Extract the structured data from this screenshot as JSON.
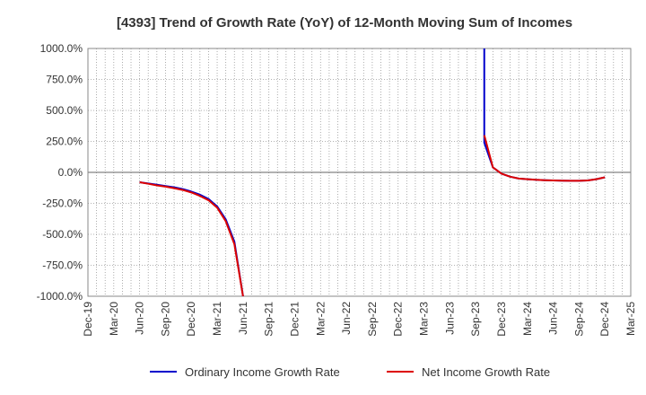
{
  "chart_data": {
    "type": "line",
    "title": "[4393]  Trend of Growth Rate (YoY) of 12-Month Moving Sum of Incomes",
    "xlabel": "",
    "ylabel": "",
    "ylim": [
      -1000,
      1000
    ],
    "yticks": [
      "1000.0%",
      "750.0%",
      "500.0%",
      "250.0%",
      "0.0%",
      "-250.0%",
      "-500.0%",
      "-750.0%",
      "-1000.0%"
    ],
    "ytick_values": [
      1000,
      750,
      500,
      250,
      0,
      -250,
      -500,
      -750,
      -1000
    ],
    "xticks": [
      "Dec-19",
      "Mar-20",
      "Jun-20",
      "Sep-20",
      "Dec-20",
      "Mar-21",
      "Jun-21",
      "Sep-21",
      "Dec-21",
      "Mar-22",
      "Jun-22",
      "Sep-22",
      "Dec-22",
      "Mar-23",
      "Jun-23",
      "Sep-23",
      "Dec-23",
      "Mar-24",
      "Jun-24",
      "Sep-24",
      "Dec-24",
      "Mar-25"
    ],
    "grid": true,
    "legend_position": "bottom",
    "series": [
      {
        "name": "Ordinary Income Growth Rate",
        "color": "#0000cc",
        "points": [
          [
            "Jun-20",
            -80
          ],
          [
            "Jul-20",
            -90
          ],
          [
            "Aug-20",
            -100
          ],
          [
            "Sep-20",
            -110
          ],
          [
            "Oct-20",
            -120
          ],
          [
            "Nov-20",
            -135
          ],
          [
            "Dec-20",
            -155
          ],
          [
            "Jan-21",
            -180
          ],
          [
            "Feb-21",
            -215
          ],
          [
            "Mar-21",
            -275
          ],
          [
            "Apr-21",
            -380
          ],
          [
            "May-21",
            -560
          ],
          [
            "Jun-21",
            -1000
          ]
        ],
        "segment2": [
          [
            "Oct-23",
            1000
          ],
          [
            "Oct-23",
            240
          ],
          [
            "Nov-23",
            40
          ],
          [
            "Dec-23",
            -10
          ],
          [
            "Jan-24",
            -35
          ],
          [
            "Feb-24",
            -50
          ],
          [
            "Mar-24",
            -55
          ],
          [
            "Apr-24",
            -60
          ],
          [
            "May-24",
            -63
          ],
          [
            "Jun-24",
            -65
          ],
          [
            "Jul-24",
            -67
          ],
          [
            "Aug-24",
            -68
          ],
          [
            "Sep-24",
            -68
          ],
          [
            "Oct-24",
            -65
          ],
          [
            "Nov-24",
            -55
          ],
          [
            "Dec-24",
            -40
          ]
        ]
      },
      {
        "name": "Net Income Growth Rate",
        "color": "#dd0000",
        "points": [
          [
            "Jun-20",
            -80
          ],
          [
            "Jul-20",
            -92
          ],
          [
            "Aug-20",
            -105
          ],
          [
            "Sep-20",
            -115
          ],
          [
            "Oct-20",
            -128
          ],
          [
            "Nov-20",
            -142
          ],
          [
            "Dec-20",
            -162
          ],
          [
            "Jan-21",
            -190
          ],
          [
            "Feb-21",
            -225
          ],
          [
            "Mar-21",
            -285
          ],
          [
            "Apr-21",
            -395
          ],
          [
            "May-21",
            -580
          ],
          [
            "Jun-21",
            -1000
          ]
        ],
        "segment2": [
          [
            "Oct-23",
            300
          ],
          [
            "Nov-23",
            40
          ],
          [
            "Dec-23",
            -10
          ],
          [
            "Jan-24",
            -35
          ],
          [
            "Feb-24",
            -50
          ],
          [
            "Mar-24",
            -55
          ],
          [
            "Apr-24",
            -60
          ],
          [
            "May-24",
            -63
          ],
          [
            "Jun-24",
            -65
          ],
          [
            "Jul-24",
            -67
          ],
          [
            "Aug-24",
            -68
          ],
          [
            "Sep-24",
            -68
          ],
          [
            "Oct-24",
            -65
          ],
          [
            "Nov-24",
            -55
          ],
          [
            "Dec-24",
            -40
          ]
        ]
      }
    ]
  }
}
